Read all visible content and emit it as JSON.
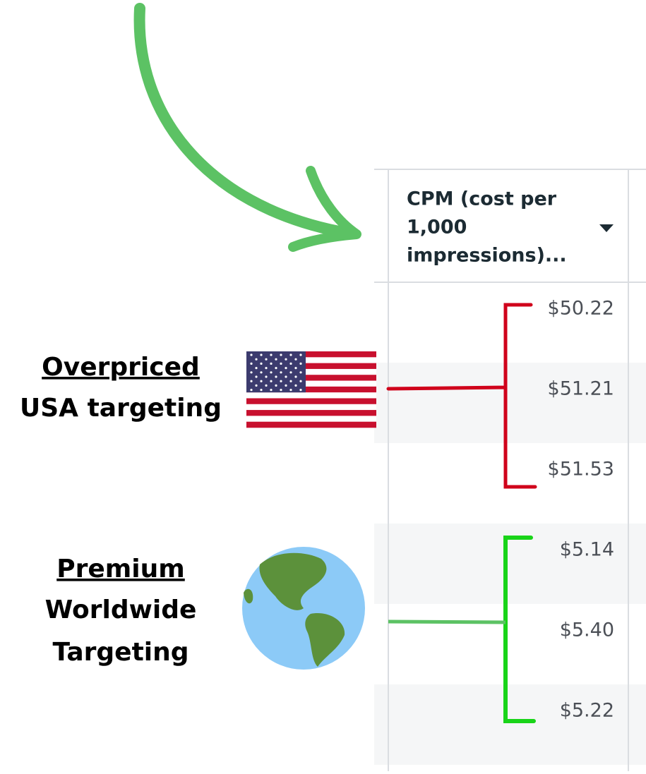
{
  "table": {
    "header": [
      "CPM (cost per",
      "1,000",
      "impressions)..."
    ],
    "rows": [
      "$50.22",
      "$51.21",
      "$51.53",
      "$5.14",
      "$5.40",
      "$5.22"
    ]
  },
  "annotations": [
    {
      "title": "Overpriced",
      "lines": [
        "USA targeting"
      ]
    },
    {
      "title": "Premium",
      "lines": [
        "Worldwide",
        "Targeting"
      ]
    }
  ]
}
